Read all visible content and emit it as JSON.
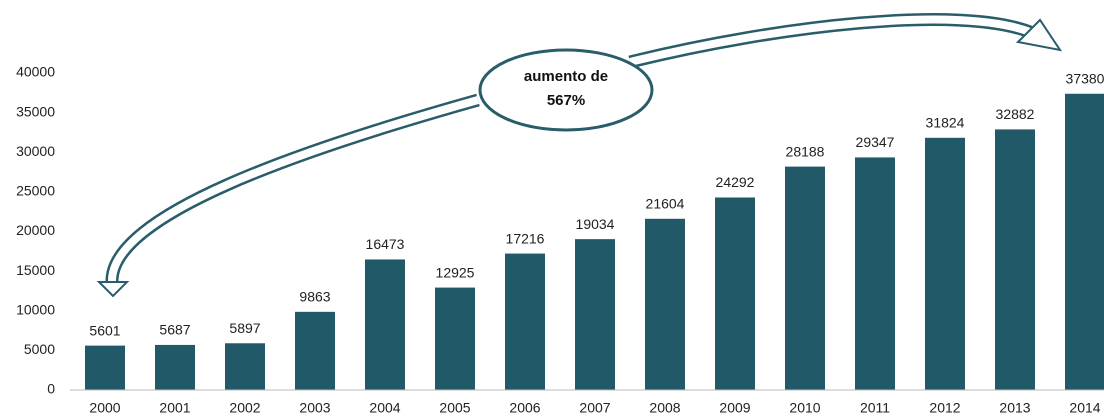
{
  "chart_data": {
    "type": "bar",
    "categories": [
      "2000",
      "2001",
      "2002",
      "2003",
      "2004",
      "2005",
      "2006",
      "2007",
      "2008",
      "2009",
      "2010",
      "2011",
      "2012",
      "2013",
      "2014"
    ],
    "values": [
      5601,
      5687,
      5897,
      9863,
      16473,
      12925,
      17216,
      19034,
      21604,
      24292,
      28188,
      29347,
      31824,
      32882,
      37380
    ],
    "color": "#215968",
    "ylim": [
      0,
      40000
    ],
    "yticks": [
      0,
      5000,
      10000,
      15000,
      20000,
      25000,
      30000,
      35000,
      40000
    ],
    "grid": false,
    "annotation": [
      "aumento de",
      "567%"
    ]
  }
}
